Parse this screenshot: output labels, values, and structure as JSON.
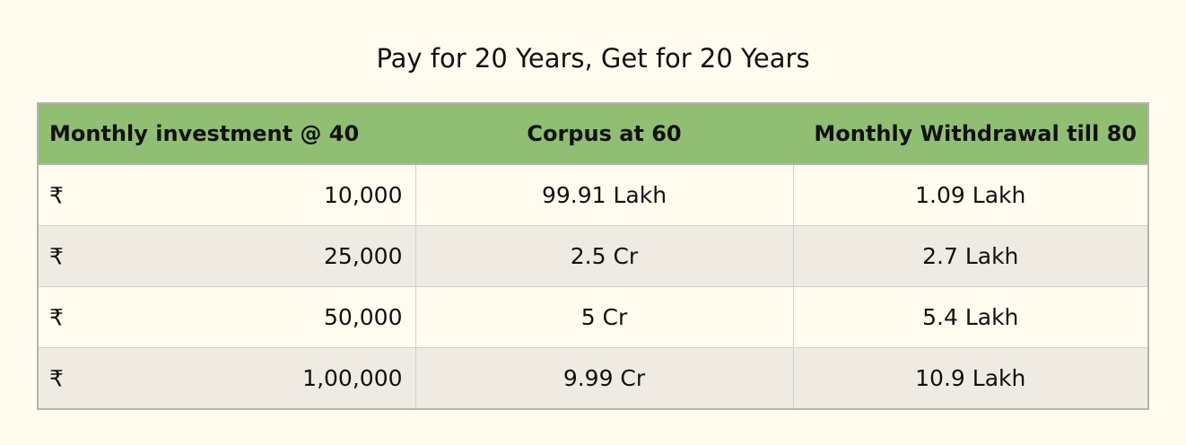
{
  "title": "Pay for 20 Years, Get for 20 Years",
  "headers": [
    "Monthly investment @ 40",
    "Corpus at 60",
    "Monthly Withdrawal till 80"
  ],
  "currency_symbol": "₹",
  "rows": [
    {
      "investment": "10,000",
      "corpus": "99.91 Lakh",
      "withdrawal": "1.09 Lakh"
    },
    {
      "investment": "25,000",
      "corpus": "2.5 Cr",
      "withdrawal": "2.7 Lakh"
    },
    {
      "investment": "50,000",
      "corpus": "5 Cr",
      "withdrawal": "5.4 Lakh"
    },
    {
      "investment": "1,00,000",
      "corpus": "9.99 Cr",
      "withdrawal": "10.9 Lakh"
    }
  ],
  "colors": {
    "header": "#90bf74",
    "background": "#fffbef",
    "alt_row": "#efebe3"
  }
}
